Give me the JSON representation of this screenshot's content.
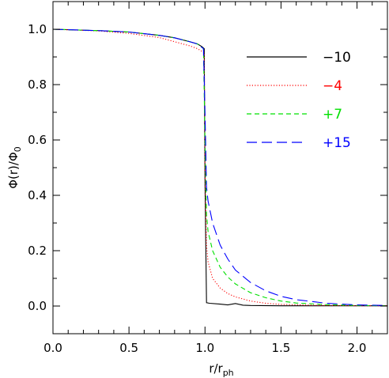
{
  "chart_data": {
    "type": "line",
    "xlabel_main": "r/r",
    "xlabel_sub": "ph",
    "ylabel_main": "Φ(r)/Φ",
    "ylabel_sub": "0",
    "xlim": [
      0.0,
      2.2
    ],
    "ylim": [
      -0.1,
      1.1
    ],
    "xticks": [
      0.0,
      0.5,
      1.0,
      1.5,
      2.0
    ],
    "xtick_labels": [
      "0.0",
      "0.5",
      "1.0",
      "1.5",
      "2.0"
    ],
    "yticks": [
      0.0,
      0.2,
      0.4,
      0.6,
      0.8,
      1.0
    ],
    "ytick_labels": [
      "0.0",
      "0.2",
      "0.4",
      "0.6",
      "0.8",
      "1.0"
    ],
    "grid": false,
    "legend_position": "top-right",
    "series": [
      {
        "name": "−10",
        "color": "#000000",
        "dash": "solid",
        "x": [
          0.0,
          0.3,
          0.5,
          0.7,
          0.8,
          0.9,
          0.95,
          0.98,
          0.995,
          1.0,
          1.01,
          1.03,
          1.1,
          1.15,
          1.2,
          1.25,
          1.3,
          1.5,
          2.0,
          2.2
        ],
        "y": [
          1.0,
          0.995,
          0.99,
          0.978,
          0.969,
          0.955,
          0.947,
          0.937,
          0.93,
          0.45,
          0.012,
          0.01,
          0.007,
          0.004,
          0.009,
          0.003,
          0.002,
          0.001,
          0.001,
          0.001
        ]
      },
      {
        "name": "−4",
        "color": "#ff0000",
        "dash": "dotted",
        "x": [
          0.0,
          0.3,
          0.5,
          0.7,
          0.8,
          0.9,
          0.95,
          0.98,
          0.995,
          1.0,
          1.01,
          1.02,
          1.05,
          1.1,
          1.15,
          1.2,
          1.3,
          1.4,
          1.5,
          1.7,
          2.0,
          2.2
        ],
        "y": [
          1.0,
          0.994,
          0.985,
          0.97,
          0.955,
          0.94,
          0.93,
          0.92,
          0.915,
          0.5,
          0.22,
          0.16,
          0.1,
          0.065,
          0.045,
          0.033,
          0.018,
          0.01,
          0.006,
          0.003,
          0.001,
          0.001
        ]
      },
      {
        "name": "+7",
        "color": "#00e000",
        "dash": "short-dash",
        "x": [
          0.0,
          0.3,
          0.5,
          0.7,
          0.8,
          0.9,
          0.95,
          0.99,
          1.0,
          1.01,
          1.02,
          1.05,
          1.1,
          1.15,
          1.2,
          1.3,
          1.4,
          1.5,
          1.6,
          1.8,
          2.0,
          2.2
        ],
        "y": [
          1.0,
          0.995,
          0.99,
          0.978,
          0.969,
          0.955,
          0.947,
          0.93,
          0.6,
          0.33,
          0.27,
          0.2,
          0.14,
          0.105,
          0.08,
          0.048,
          0.03,
          0.018,
          0.011,
          0.005,
          0.002,
          0.001
        ]
      },
      {
        "name": "+15",
        "color": "#0000ff",
        "dash": "long-dash",
        "x": [
          0.0,
          0.3,
          0.5,
          0.7,
          0.8,
          0.9,
          0.95,
          0.99,
          1.0,
          1.01,
          1.02,
          1.05,
          1.1,
          1.15,
          1.2,
          1.3,
          1.4,
          1.5,
          1.6,
          1.8,
          2.0,
          2.2
        ],
        "y": [
          1.0,
          0.995,
          0.99,
          0.978,
          0.969,
          0.955,
          0.947,
          0.93,
          0.7,
          0.43,
          0.38,
          0.3,
          0.22,
          0.17,
          0.13,
          0.085,
          0.055,
          0.035,
          0.023,
          0.01,
          0.004,
          0.002
        ]
      }
    ]
  }
}
